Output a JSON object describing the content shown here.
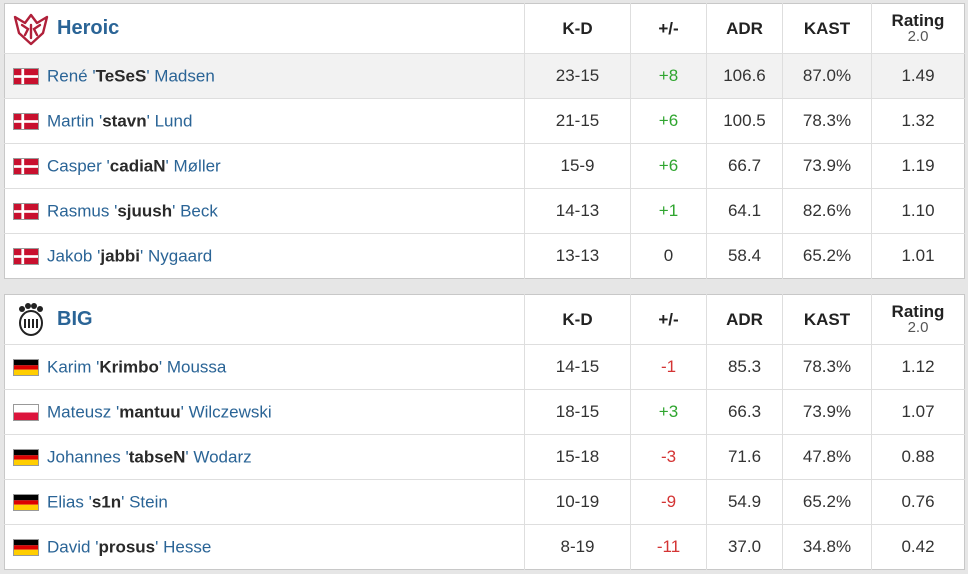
{
  "columns": {
    "kd": "K-D",
    "pm": "+/-",
    "adr": "ADR",
    "kast": "KAST",
    "rating_top": "Rating",
    "rating_bottom": "2.0"
  },
  "teams": [
    {
      "name": "Heroic",
      "logo": "heroic-logo",
      "players": [
        {
          "first": "René",
          "nick": "TeSeS",
          "last": "Madsen",
          "flag": "denmark-flag",
          "kd": "23-15",
          "pm": "+8",
          "pm_sign": "pos",
          "adr": "106.6",
          "kast": "87.0%",
          "rating": "1.49"
        },
        {
          "first": "Martin",
          "nick": "stavn",
          "last": "Lund",
          "flag": "denmark-flag",
          "kd": "21-15",
          "pm": "+6",
          "pm_sign": "pos",
          "adr": "100.5",
          "kast": "78.3%",
          "rating": "1.32"
        },
        {
          "first": "Casper",
          "nick": "cadiaN",
          "last": "Møller",
          "flag": "denmark-flag",
          "kd": "15-9",
          "pm": "+6",
          "pm_sign": "pos",
          "adr": "66.7",
          "kast": "73.9%",
          "rating": "1.19"
        },
        {
          "first": "Rasmus",
          "nick": "sjuush",
          "last": "Beck",
          "flag": "denmark-flag",
          "kd": "14-13",
          "pm": "+1",
          "pm_sign": "pos",
          "adr": "64.1",
          "kast": "82.6%",
          "rating": "1.10"
        },
        {
          "first": "Jakob",
          "nick": "jabbi",
          "last": "Nygaard",
          "flag": "denmark-flag",
          "kd": "13-13",
          "pm": "0",
          "pm_sign": "neutral",
          "adr": "58.4",
          "kast": "65.2%",
          "rating": "1.01"
        }
      ]
    },
    {
      "name": "BIG",
      "logo": "big-logo",
      "players": [
        {
          "first": "Karim",
          "nick": "Krimbo",
          "last": "Moussa",
          "flag": "germany-flag",
          "kd": "14-15",
          "pm": "-1",
          "pm_sign": "neg",
          "adr": "85.3",
          "kast": "78.3%",
          "rating": "1.12"
        },
        {
          "first": "Mateusz",
          "nick": "mantuu",
          "last": "Wilczewski",
          "flag": "poland-flag",
          "kd": "18-15",
          "pm": "+3",
          "pm_sign": "pos",
          "adr": "66.3",
          "kast": "73.9%",
          "rating": "1.07"
        },
        {
          "first": "Johannes",
          "nick": "tabseN",
          "last": "Wodarz",
          "flag": "germany-flag",
          "kd": "15-18",
          "pm": "-3",
          "pm_sign": "neg",
          "adr": "71.6",
          "kast": "47.8%",
          "rating": "0.88"
        },
        {
          "first": "Elias",
          "nick": "s1n",
          "last": "Stein",
          "flag": "germany-flag",
          "kd": "10-19",
          "pm": "-9",
          "pm_sign": "neg",
          "adr": "54.9",
          "kast": "65.2%",
          "rating": "0.76"
        },
        {
          "first": "David",
          "nick": "prosus",
          "last": "Hesse",
          "flag": "germany-flag",
          "kd": "8-19",
          "pm": "-11",
          "pm_sign": "neg",
          "adr": "37.0",
          "kast": "34.8%",
          "rating": "0.42"
        }
      ]
    }
  ]
}
